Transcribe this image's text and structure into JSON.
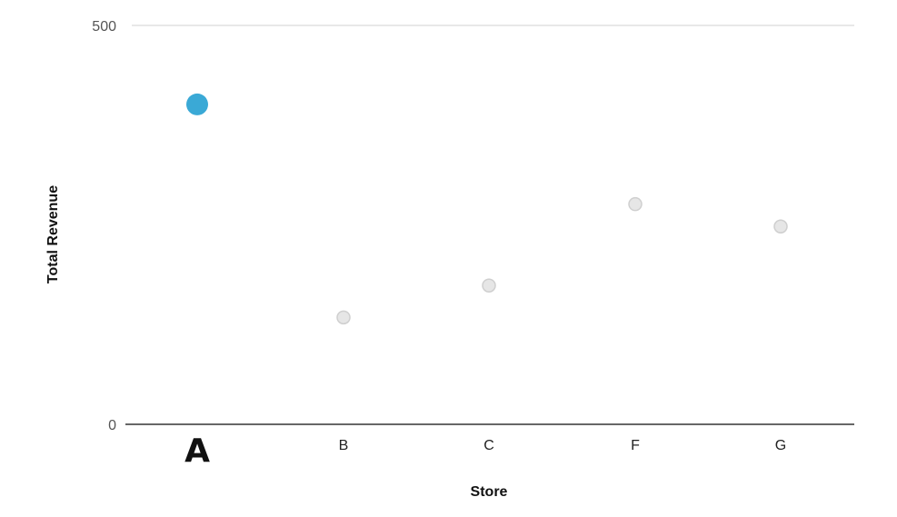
{
  "chart_data": {
    "type": "scatter",
    "title": "",
    "xlabel": "Store",
    "ylabel": "Total Revenue",
    "categories": [
      "A",
      "B",
      "C",
      "F",
      "G"
    ],
    "values": [
      401,
      134,
      174,
      276,
      248
    ],
    "ylim": [
      0,
      500
    ],
    "yticks": [
      "0",
      "500"
    ],
    "highlighted_category": "A",
    "grid": false,
    "legend": "none",
    "colors": {
      "highlight": "#3aa9d6",
      "muted": "#e6e6e6",
      "muted_stroke": "#cfcfcf",
      "axis": "#666666",
      "top_line": "#e8e8e8"
    }
  }
}
